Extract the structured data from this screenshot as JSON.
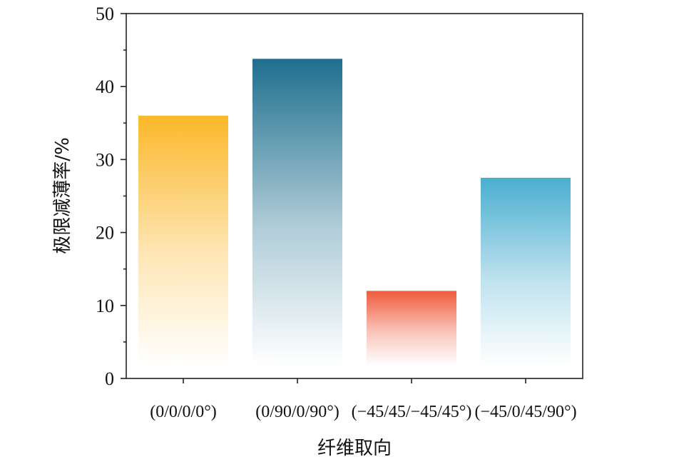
{
  "chart_data": {
    "type": "bar",
    "title": "",
    "xlabel": "纤维取向",
    "ylabel": "极限减薄率/%",
    "categories": [
      "(0/0/0/0°)",
      "(0/90/0/90°)",
      "(−45/45/−45/45°)",
      "(−45/0/45/90°)"
    ],
    "values": [
      36,
      43.8,
      12,
      27.5
    ],
    "ylim": [
      0,
      50
    ],
    "yticks": [
      "0",
      "10",
      "20",
      "30",
      "40",
      "50"
    ],
    "colors": [
      "#fbb82a",
      "#1e6f8e",
      "#ef5a3c",
      "#4aaed0"
    ],
    "grid": false,
    "legend": "none"
  }
}
